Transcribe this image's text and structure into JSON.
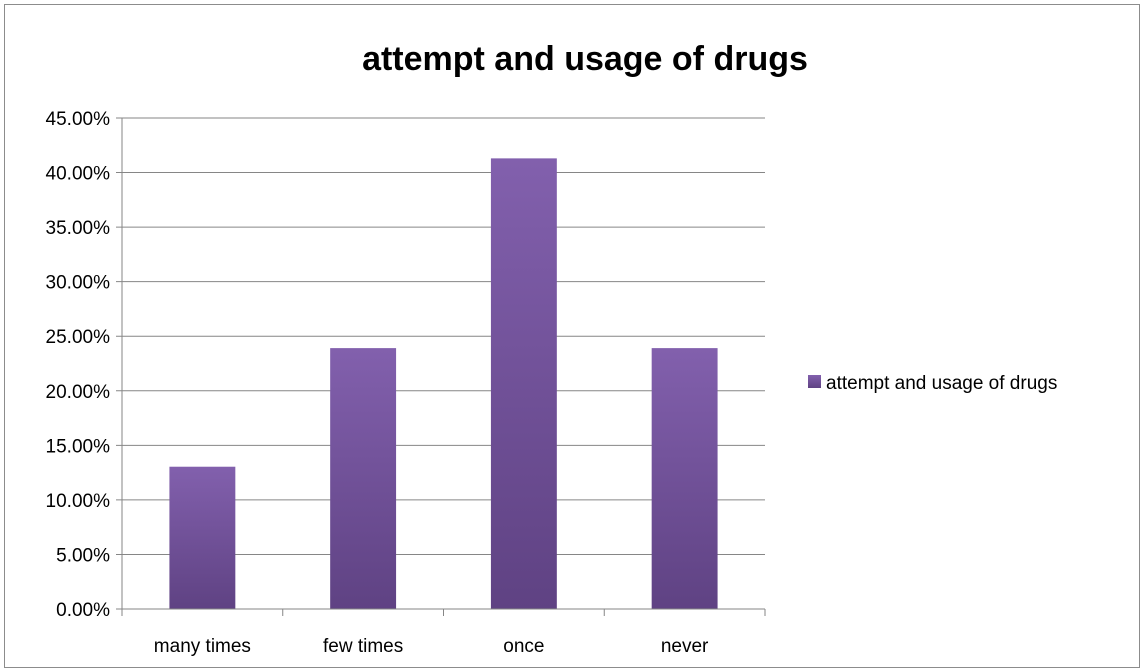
{
  "chart_data": {
    "type": "bar",
    "title": "attempt and usage of drugs",
    "categories": [
      "many times",
      "few times",
      "once",
      "never"
    ],
    "series": [
      {
        "name": "attempt and usage of drugs",
        "values": [
          13.04,
          23.91,
          41.3,
          23.91
        ]
      }
    ],
    "y_ticks": [
      "0.00%",
      "5.00%",
      "10.00%",
      "15.00%",
      "20.00%",
      "25.00%",
      "30.00%",
      "35.00%",
      "40.00%",
      "45.00%"
    ],
    "ylim": [
      0,
      45
    ],
    "grid": true,
    "legend_position": "right",
    "colors": {
      "bar_top": "#8260ad",
      "bar_bottom": "#5f4283",
      "grid": "#868686"
    }
  }
}
